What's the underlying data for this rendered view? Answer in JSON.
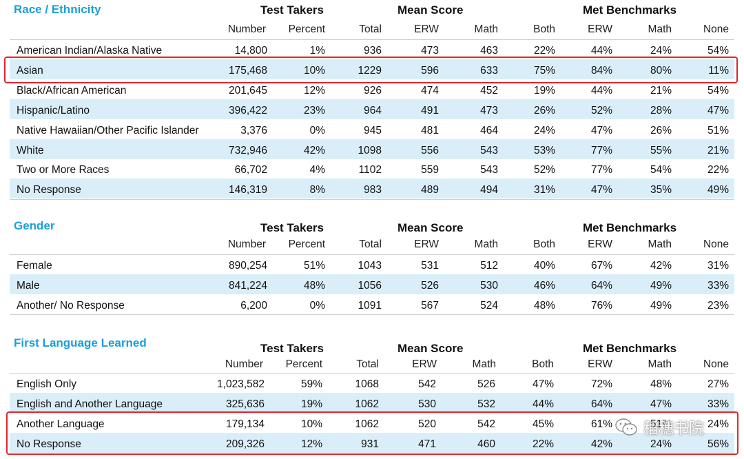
{
  "column_headers": {
    "test_takers": "Test Takers",
    "mean_score": "Mean Score",
    "met_benchmarks": "Met Benchmarks",
    "number": "Number",
    "percent": "Percent",
    "total": "Total",
    "erw": "ERW",
    "math": "Math",
    "both": "Both",
    "erw2": "ERW",
    "math2": "Math",
    "none": "None"
  },
  "sections": [
    {
      "title": "Race / Ethnicity",
      "rows": [
        [
          "American Indian/Alaska Native",
          "14,800",
          "1%",
          "936",
          "473",
          "463",
          "22%",
          "44%",
          "24%",
          "54%"
        ],
        [
          "Asian",
          "175,468",
          "10%",
          "1229",
          "596",
          "633",
          "75%",
          "84%",
          "80%",
          "11%"
        ],
        [
          "Black/African American",
          "201,645",
          "12%",
          "926",
          "474",
          "452",
          "19%",
          "44%",
          "21%",
          "54%"
        ],
        [
          "Hispanic/Latino",
          "396,422",
          "23%",
          "964",
          "491",
          "473",
          "26%",
          "52%",
          "28%",
          "47%"
        ],
        [
          "Native Hawaiian/Other Pacific Islander",
          "3,376",
          "0%",
          "945",
          "481",
          "464",
          "24%",
          "47%",
          "26%",
          "51%"
        ],
        [
          "White",
          "732,946",
          "42%",
          "1098",
          "556",
          "543",
          "53%",
          "77%",
          "55%",
          "21%"
        ],
        [
          "Two or More Races",
          "66,702",
          "4%",
          "1102",
          "559",
          "543",
          "52%",
          "77%",
          "54%",
          "22%"
        ],
        [
          "No Response",
          "146,319",
          "8%",
          "983",
          "489",
          "494",
          "31%",
          "47%",
          "35%",
          "49%"
        ]
      ]
    },
    {
      "title": "Gender",
      "rows": [
        [
          "Female",
          "890,254",
          "51%",
          "1043",
          "531",
          "512",
          "40%",
          "67%",
          "42%",
          "31%"
        ],
        [
          "Male",
          "841,224",
          "48%",
          "1056",
          "526",
          "530",
          "46%",
          "64%",
          "49%",
          "33%"
        ],
        [
          "Another/ No Response",
          "6,200",
          "0%",
          "1091",
          "567",
          "524",
          "48%",
          "76%",
          "49%",
          "23%"
        ]
      ]
    },
    {
      "title": "First Language Learned",
      "rows": [
        [
          "English Only",
          "1,023,582",
          "59%",
          "1068",
          "542",
          "526",
          "47%",
          "72%",
          "48%",
          "27%"
        ],
        [
          "English and Another Language",
          "325,636",
          "19%",
          "1062",
          "530",
          "532",
          "44%",
          "64%",
          "47%",
          "33%"
        ],
        [
          "Another Language",
          "179,134",
          "10%",
          "1062",
          "520",
          "542",
          "45%",
          "61%",
          "51%",
          "24%"
        ],
        [
          "No Response",
          "209,326",
          "12%",
          "931",
          "471",
          "460",
          "22%",
          "42%",
          "24%",
          "56%"
        ]
      ]
    }
  ],
  "watermark": {
    "text": "稻穗书院",
    "icon": "wechat-icon"
  },
  "colors": {
    "section_title": "#1a9fd9",
    "row_shade": "#d9eef8",
    "highlight": "#e0262b"
  }
}
